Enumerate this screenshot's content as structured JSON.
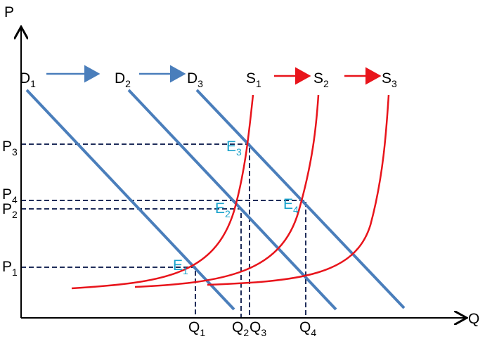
{
  "axes": {
    "y": "P",
    "x": "Q"
  },
  "demand": [
    {
      "letter": "D",
      "sub": "1"
    },
    {
      "letter": "D",
      "sub": "2"
    },
    {
      "letter": "D",
      "sub": "3"
    }
  ],
  "supply": [
    {
      "letter": "S",
      "sub": "1"
    },
    {
      "letter": "S",
      "sub": "2"
    },
    {
      "letter": "S",
      "sub": "3"
    }
  ],
  "prices": [
    {
      "letter": "P",
      "sub": "3"
    },
    {
      "letter": "P",
      "sub": "4"
    },
    {
      "letter": "P",
      "sub": "2"
    },
    {
      "letter": "P",
      "sub": "1"
    }
  ],
  "quantities": [
    {
      "letter": "Q",
      "sub": "1"
    },
    {
      "letter": "Q",
      "sub": "2"
    },
    {
      "letter": "Q",
      "sub": "3"
    },
    {
      "letter": "Q",
      "sub": "4"
    }
  ],
  "equilibria": [
    {
      "letter": "E",
      "sub": "3"
    },
    {
      "letter": "E",
      "sub": "2"
    },
    {
      "letter": "E",
      "sub": "4"
    },
    {
      "letter": "E",
      "sub": "1"
    }
  ]
}
